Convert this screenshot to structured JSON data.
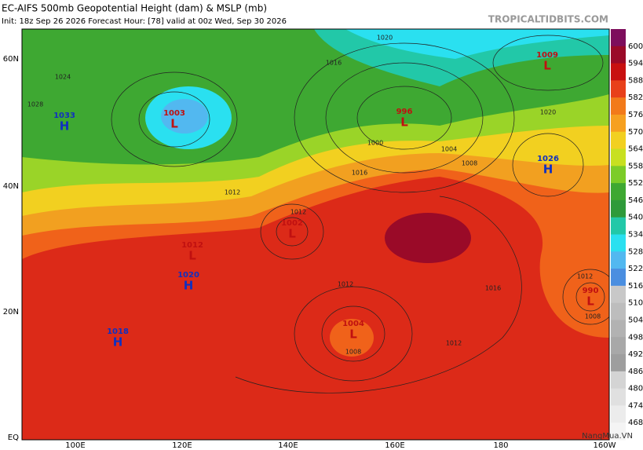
{
  "header": {
    "title": "EC-AIFS 500mb Geopotential Height (dam) & MSLP (mb)",
    "subtitle": "Init: 18z Sep 26 2026   Forecast Hour: [78]   valid at 00z Wed, Sep 30 2026",
    "watermark": "TROPICALTIDBITS.COM",
    "corner_mark": "NangMua.VN"
  },
  "axes": {
    "lat_labels": [
      "60N",
      "40N",
      "20N",
      "EQ"
    ],
    "lon_labels": [
      "100E",
      "120E",
      "140E",
      "160E",
      "180",
      "160W"
    ]
  },
  "colorbar": {
    "labels": [
      "600",
      "594",
      "588",
      "582",
      "576",
      "570",
      "564",
      "558",
      "552",
      "546",
      "540",
      "534",
      "528",
      "522",
      "516",
      "510",
      "504",
      "498",
      "492",
      "486",
      "480",
      "474",
      "468"
    ],
    "colors": [
      "#7d0e5c",
      "#9a0a28",
      "#c81010",
      "#e8401a",
      "#f27a1a",
      "#f6a020",
      "#f2d020",
      "#c8e020",
      "#7ccc28",
      "#3ea832",
      "#2e9a3a",
      "#22c8a8",
      "#2ae0f0",
      "#52b8f0",
      "#4a8ee0",
      "#c8c8c8",
      "#bdbdbd",
      "#b2b2b2",
      "#a8a8a8",
      "#9e9e9e",
      "#d4d4d4",
      "#e0e0e0",
      "#ececec",
      "#f4f4f4"
    ]
  },
  "centers": [
    {
      "letter": "H",
      "value": "1033"
    },
    {
      "letter": "L",
      "value": "1003"
    },
    {
      "letter": "L",
      "value": "1009"
    },
    {
      "letter": "L",
      "value": "996"
    },
    {
      "letter": "H",
      "value": "1026"
    },
    {
      "letter": "L",
      "value": "1002"
    },
    {
      "letter": "L",
      "value": "1012"
    },
    {
      "letter": "H",
      "value": "1020"
    },
    {
      "letter": "H",
      "value": "1018"
    },
    {
      "letter": "L",
      "value": "1004"
    },
    {
      "letter": "L",
      "value": "990"
    }
  ],
  "isobar_labels": [
    "1020",
    "1016",
    "1012",
    "1008",
    "1004",
    "1000",
    "1012",
    "1016",
    "1020",
    "1012",
    "1008",
    "1012",
    "1012",
    "1016",
    "1008",
    "1024",
    "1028"
  ]
}
